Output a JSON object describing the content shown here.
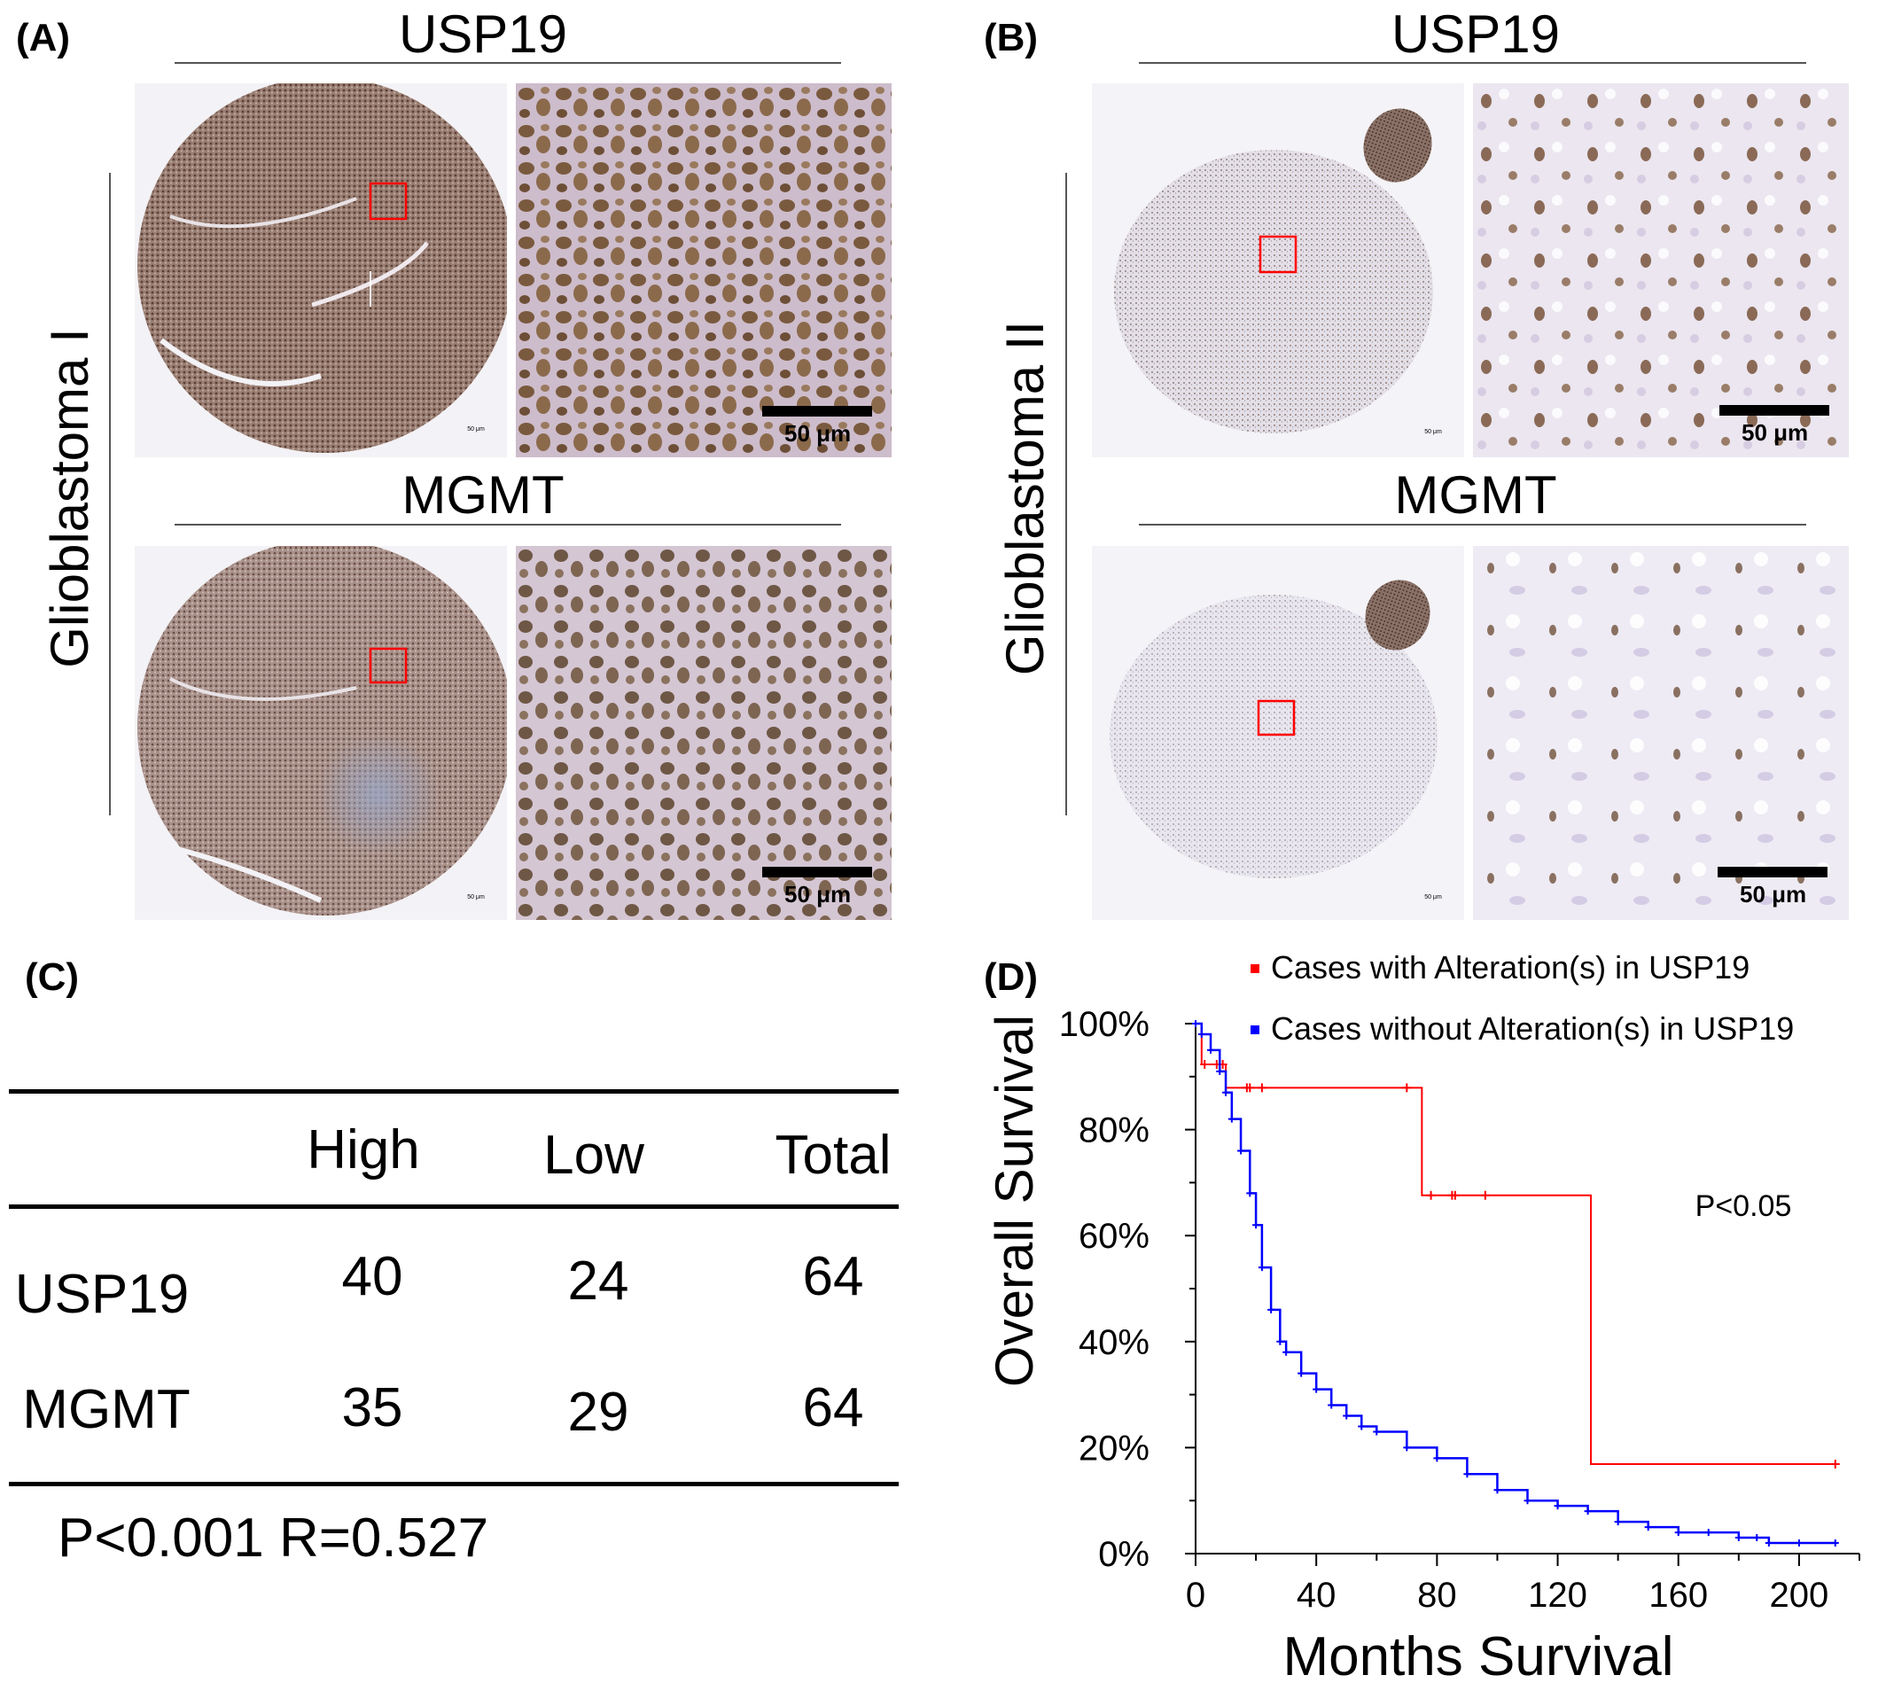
{
  "panel_a": {
    "label": "(A)",
    "row_label": "Glioblastoma I",
    "top_title": "USP19",
    "bottom_title": "MGMT",
    "scale_text_top": "50 μm",
    "scale_text_bottom": "50 μm",
    "tiny_scale_top": "50 μm",
    "tiny_scale_bottom": "50 μm"
  },
  "panel_b": {
    "label": "(B)",
    "row_label": "Glioblastoma II",
    "top_title": "USP19",
    "bottom_title": "MGMT",
    "scale_text_top": "50 μm",
    "scale_text_bottom": "50 μm",
    "tiny_scale_top": "50 μm",
    "tiny_scale_bottom": "50 μm"
  },
  "panel_c": {
    "label": "(C)",
    "headers": [
      "High",
      "Low",
      "Total"
    ],
    "rows": [
      {
        "name": "USP19",
        "values": [
          "40",
          "24",
          "64"
        ]
      },
      {
        "name": "MGMT",
        "values": [
          "35",
          "29",
          "64"
        ]
      }
    ],
    "stats": "P<0.001 R=0.527"
  },
  "panel_d": {
    "label": "(D)",
    "pvalue": "P<0.05"
  },
  "chart_data": {
    "type": "line",
    "xlabel": "Months Survival",
    "ylabel": "Overall Survival",
    "xlim": [
      0,
      220
    ],
    "ylim": [
      0,
      100
    ],
    "xticks": [
      "0",
      "40",
      "80",
      "120",
      "160",
      "200"
    ],
    "yticks": [
      "0%",
      "20%",
      "40%",
      "60%",
      "80%",
      "100%"
    ],
    "legend_position": "top",
    "series": [
      {
        "name": "Cases with Alteration(s) in USP19",
        "color": "#ff0000",
        "x": [
          0,
          2,
          2,
          10,
          10,
          75,
          75,
          131,
          131,
          212
        ],
        "y": [
          100,
          100,
          92.3,
          92.3,
          87.9,
          87.9,
          67.6,
          67.6,
          16.9,
          16.9
        ],
        "censored_x": [
          3,
          7,
          9,
          17,
          18,
          22,
          70,
          78,
          85,
          86,
          96,
          212
        ],
        "censored_y": [
          92.3,
          92.3,
          92.3,
          87.9,
          87.9,
          87.9,
          87.9,
          67.6,
          67.6,
          67.6,
          67.6,
          16.9
        ]
      },
      {
        "name": "Cases without Alteration(s) in USP19",
        "color": "#0000ff",
        "x": [
          0,
          2,
          5,
          8,
          10,
          12,
          15,
          18,
          20,
          22,
          25,
          28,
          30,
          35,
          40,
          45,
          50,
          55,
          60,
          70,
          80,
          90,
          100,
          110,
          120,
          130,
          140,
          150,
          160,
          170,
          180,
          186,
          190,
          200,
          212
        ],
        "y": [
          100,
          98,
          95,
          91,
          87,
          82,
          76,
          68,
          62,
          54,
          46,
          40,
          38,
          34,
          31,
          28,
          26,
          24,
          23,
          20,
          18,
          15,
          12,
          10,
          9,
          8,
          6,
          5,
          4,
          4,
          3,
          3,
          2,
          2,
          2
        ]
      }
    ]
  },
  "colors": {
    "red_box": "#ff0000",
    "stain_brown": "#8a6a5a",
    "background": "#ffffff"
  }
}
